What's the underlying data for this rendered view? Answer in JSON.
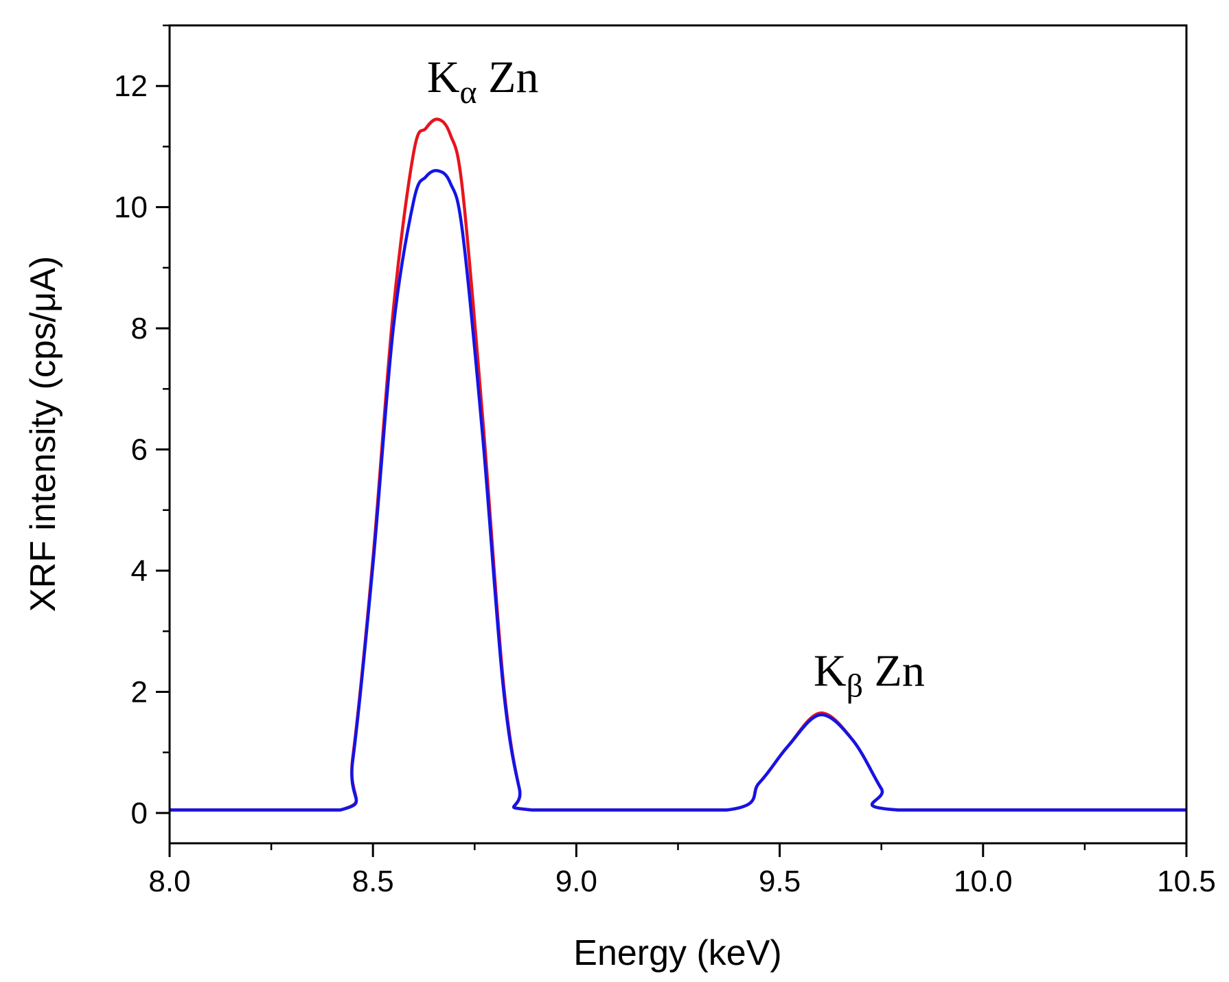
{
  "chart_data": {
    "type": "line",
    "xlabel": "Energy (keV)",
    "ylabel": "XRF intensity (cps/μA)",
    "xlim": [
      8.0,
      10.5
    ],
    "ylim": [
      -0.5,
      13
    ],
    "x_ticks": [
      8.0,
      8.5,
      9.0,
      9.5,
      10.0,
      10.5
    ],
    "x_tick_labels": [
      "8.0",
      "8.5",
      "9.0",
      "9.5",
      "10.0",
      "10.5"
    ],
    "y_ticks": [
      0,
      2,
      4,
      6,
      8,
      10,
      12
    ],
    "y_tick_labels": [
      "0",
      "2",
      "4",
      "6",
      "8",
      "10",
      "12"
    ],
    "x_minor_step": 0.25,
    "y_minor_step": 1,
    "grid": false,
    "series": [
      {
        "name": "red-spectrum",
        "color": "#e8141c",
        "x": [
          8.0,
          8.42,
          8.45,
          8.5,
          8.55,
          8.6,
          8.63,
          8.66,
          8.69,
          8.72,
          8.77,
          8.82,
          8.86,
          8.89,
          9.37,
          9.45,
          9.52,
          9.6,
          9.68,
          9.75,
          9.79,
          10.5
        ],
        "y": [
          0.05,
          0.05,
          0.9,
          4.2,
          8.3,
          10.9,
          11.3,
          11.45,
          11.2,
          10.3,
          6.5,
          2.2,
          0.4,
          0.05,
          0.05,
          0.5,
          1.1,
          1.65,
          1.2,
          0.4,
          0.05,
          0.05
        ]
      },
      {
        "name": "blue-spectrum",
        "color": "#1414e6",
        "x": [
          8.0,
          8.42,
          8.45,
          8.5,
          8.55,
          8.6,
          8.63,
          8.66,
          8.69,
          8.72,
          8.77,
          8.82,
          8.86,
          8.89,
          9.37,
          9.45,
          9.52,
          9.6,
          9.68,
          9.75,
          9.79,
          10.5
        ],
        "y": [
          0.05,
          0.05,
          0.85,
          4.1,
          8.0,
          10.1,
          10.5,
          10.6,
          10.4,
          9.6,
          6.2,
          2.1,
          0.4,
          0.05,
          0.05,
          0.5,
          1.1,
          1.62,
          1.2,
          0.4,
          0.05,
          0.05
        ]
      }
    ],
    "annotations": [
      {
        "name": "k-alpha-label",
        "main": "K",
        "sub": "α",
        "rest": " Zn",
        "x": 8.77,
        "y": 11.9
      },
      {
        "name": "k-beta-label",
        "main": "K",
        "sub": "β",
        "rest": " Zn",
        "x": 9.72,
        "y": 2.1
      }
    ]
  }
}
